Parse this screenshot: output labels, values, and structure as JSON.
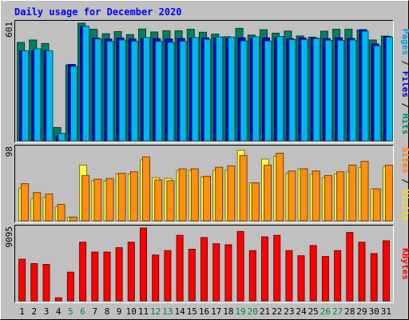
{
  "chart_data": {
    "type": "bar",
    "title": "Daily usage for December 2020",
    "categories": [
      "1",
      "2",
      "3",
      "4",
      "5",
      "6",
      "7",
      "8",
      "9",
      "10",
      "11",
      "12",
      "13",
      "14",
      "15",
      "16",
      "17",
      "18",
      "19",
      "20",
      "21",
      "22",
      "23",
      "24",
      "25",
      "26",
      "27",
      "28",
      "29",
      "30",
      "31"
    ],
    "weekend_days": [
      "5",
      "6",
      "12",
      "13",
      "19",
      "20",
      "26",
      "27"
    ],
    "panels": [
      {
        "id": "pages-files-hits",
        "ymax_label": "601",
        "ymax": 601,
        "label_parts": [
          {
            "text": "Pages",
            "color": "#00a0e0"
          },
          {
            "text": " / ",
            "color": "#000000"
          },
          {
            "text": "Files",
            "color": "#0000cc"
          },
          {
            "text": " / ",
            "color": "#000000"
          },
          {
            "text": "Hits",
            "color": "#008080"
          }
        ],
        "series": [
          {
            "name": "Hits",
            "color": "#008060",
            "values": [
              503,
              515,
              497,
              68,
              388,
              601,
              570,
              547,
              558,
              543,
              571,
              556,
              562,
              562,
              570,
              555,
              545,
              532,
              575,
              540,
              568,
              550,
              561,
              536,
              530,
              560,
              570,
              570,
              566,
              515,
              535
            ]
          },
          {
            "name": "Files",
            "color": "#0000cc",
            "values": [
              460,
              461,
              460,
              25,
              390,
              585,
              525,
              520,
              525,
              520,
              522,
              522,
              520,
              523,
              525,
              526,
              525,
              522,
              526,
              522,
              526,
              526,
              522,
              526,
              525,
              522,
              526,
              523,
              568,
              495,
              533
            ]
          },
          {
            "name": "Pages",
            "color": "#00b8f0",
            "values": [
              460,
              470,
              460,
              38,
              380,
              585,
              520,
              508,
              515,
              508,
              528,
              508,
              503,
              508,
              528,
              518,
              531,
              530,
              510,
              532,
              510,
              533,
              517,
              517,
              523,
              514,
              513,
              515,
              560,
              485,
              530
            ]
          }
        ]
      },
      {
        "id": "visits-sites",
        "ymax_label": "98",
        "ymax": 98,
        "label_parts": [
          {
            "text": "Sites",
            "color": "#ff8000"
          },
          {
            "text": " / ",
            "color": "#000000"
          },
          {
            "text": "Visits",
            "color": "#ffe000"
          }
        ],
        "series": [
          {
            "name": "Visits",
            "color": "#ffff40",
            "values": [
              44,
              30,
              32,
              19,
              5,
              75,
              54,
              54,
              63,
              63,
              82,
              58,
              57,
              68,
              68,
              59,
              68,
              68,
              95,
              51,
              83,
              87,
              64,
              70,
              63,
              58,
              63,
              66,
              72,
              43,
              73
            ]
          },
          {
            "name": "Sites",
            "color": "#ff9010",
            "values": [
              50,
              38,
              36,
              22,
              5,
              61,
              56,
              57,
              64,
              66,
              86,
              55,
              54,
              70,
              70,
              60,
              72,
              74,
              88,
              51,
              75,
              91,
              67,
              70,
              67,
              61,
              66,
              75,
              80,
              43,
              75
            ]
          }
        ]
      },
      {
        "id": "kbytes",
        "ymax_label": "9095",
        "ymax": 9095,
        "label_parts": [
          {
            "text": "KBytes",
            "color": "#ff0000"
          }
        ],
        "series": [
          {
            "name": "KBytes",
            "color": "#ff0000",
            "values": [
              5190,
              4650,
              4550,
              370,
              3580,
              7320,
              6090,
              6090,
              6640,
              7320,
              9095,
              5720,
              6270,
              8180,
              6450,
              7900,
              7130,
              7000,
              8670,
              6270,
              7990,
              8180,
              6270,
              5630,
              6910,
              5540,
              6270,
              8540,
              7320,
              5900,
              7500
            ]
          }
        ]
      }
    ],
    "colors": {
      "background": "#c0c0c0",
      "weekday_label": "#000000",
      "weekend_label": "#008040",
      "title": "#0000ff"
    }
  }
}
